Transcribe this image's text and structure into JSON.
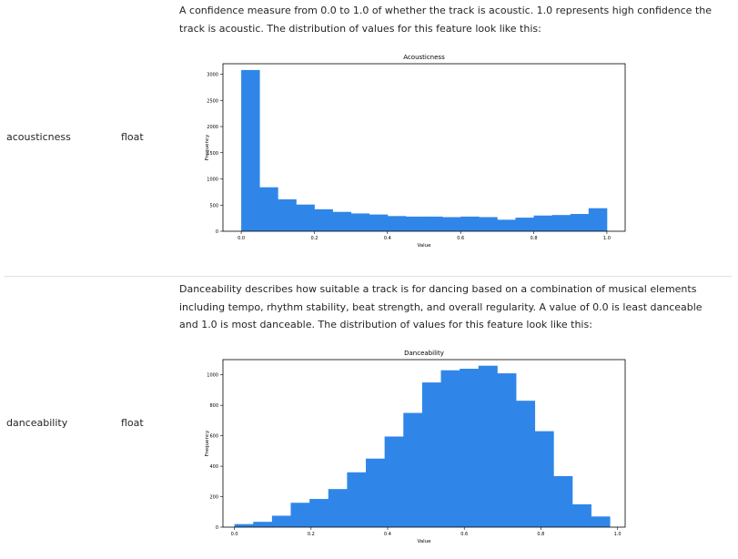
{
  "rows": [
    {
      "name": "acousticness",
      "type": "float",
      "description": "A confidence measure from 0.0 to 1.0 of whether the track is acoustic. 1.0 represents high confidence the track is acoustic. The distribution of values for this feature look like this:"
    },
    {
      "name": "danceability",
      "type": "float",
      "description": "Danceability describes how suitable a track is for dancing based on a combination of musical elements including tempo, rhythm stability, beat strength, and overall regularity. A value of 0.0 is least danceable and 1.0 is most danceable. The distribution of values for this feature look like this:"
    }
  ],
  "chart_data": [
    {
      "type": "bar",
      "title": "Acousticness",
      "xlabel": "Value",
      "ylabel": "Frequency",
      "xlim": [
        -0.05,
        1.05
      ],
      "ylim": [
        0,
        3200
      ],
      "xticks": [
        "0.0",
        "0.2",
        "0.4",
        "0.6",
        "0.8",
        "1.0"
      ],
      "yticks": [
        "0",
        "500",
        "1000",
        "1500",
        "2000",
        "2500",
        "3000"
      ],
      "bin_edges": [
        0.0,
        0.05,
        0.1,
        0.15,
        0.2,
        0.25,
        0.3,
        0.35,
        0.4,
        0.45,
        0.5,
        0.55,
        0.6,
        0.65,
        0.7,
        0.75,
        0.8,
        0.85,
        0.9,
        0.95,
        1.0
      ],
      "values": [
        3080,
        840,
        610,
        510,
        420,
        370,
        340,
        320,
        290,
        280,
        280,
        270,
        280,
        270,
        220,
        260,
        300,
        310,
        330,
        440
      ],
      "color": "#2f86e8",
      "grid": false
    },
    {
      "type": "bar",
      "title": "Danceability",
      "xlabel": "Value",
      "ylabel": "Frequency",
      "xlim": [
        -0.03,
        1.02
      ],
      "ylim": [
        0,
        1100
      ],
      "xticks": [
        "0.0",
        "0.2",
        "0.4",
        "0.6",
        "0.8",
        "1.0"
      ],
      "yticks": [
        "0",
        "200",
        "400",
        "600",
        "800",
        "1000"
      ],
      "bin_edges": [
        0.0,
        0.049,
        0.098,
        0.147,
        0.196,
        0.245,
        0.294,
        0.343,
        0.392,
        0.441,
        0.49,
        0.539,
        0.588,
        0.637,
        0.686,
        0.735,
        0.784,
        0.833,
        0.882,
        0.931,
        0.98
      ],
      "values": [
        20,
        35,
        75,
        160,
        185,
        250,
        360,
        450,
        595,
        750,
        950,
        1030,
        1040,
        1060,
        1010,
        830,
        630,
        335,
        150,
        70
      ],
      "color": "#2f86e8",
      "grid": false
    }
  ]
}
